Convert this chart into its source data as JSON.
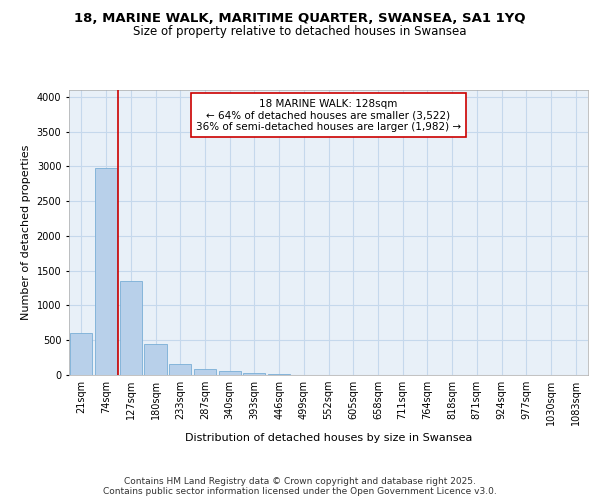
{
  "title_line1": "18, MARINE WALK, MARITIME QUARTER, SWANSEA, SA1 1YQ",
  "title_line2": "Size of property relative to detached houses in Swansea",
  "xlabel": "Distribution of detached houses by size in Swansea",
  "ylabel": "Number of detached properties",
  "categories": [
    "21sqm",
    "74sqm",
    "127sqm",
    "180sqm",
    "233sqm",
    "287sqm",
    "340sqm",
    "393sqm",
    "446sqm",
    "499sqm",
    "552sqm",
    "605sqm",
    "658sqm",
    "711sqm",
    "764sqm",
    "818sqm",
    "871sqm",
    "924sqm",
    "977sqm",
    "1030sqm",
    "1083sqm"
  ],
  "values": [
    600,
    2975,
    1355,
    450,
    165,
    90,
    55,
    25,
    10,
    5,
    3,
    2,
    1,
    1,
    1,
    1,
    0,
    0,
    0,
    0,
    0
  ],
  "bar_color": "#b8d0ea",
  "bar_edge_color": "#7aaed6",
  "grid_color": "#c5d8ec",
  "background_color": "#e8f0f8",
  "red_line_x": 1.5,
  "red_line_color": "#cc0000",
  "annotation_text": "18 MARINE WALK: 128sqm\n← 64% of detached houses are smaller (3,522)\n36% of semi-detached houses are larger (1,982) →",
  "annotation_box_color": "#ffffff",
  "annotation_box_edge": "#cc0000",
  "ylim": [
    0,
    4100
  ],
  "yticks": [
    0,
    500,
    1000,
    1500,
    2000,
    2500,
    3000,
    3500,
    4000
  ],
  "footer_line1": "Contains HM Land Registry data © Crown copyright and database right 2025.",
  "footer_line2": "Contains public sector information licensed under the Open Government Licence v3.0.",
  "title_fontsize": 9.5,
  "subtitle_fontsize": 8.5,
  "axis_label_fontsize": 8,
  "tick_fontsize": 7,
  "annotation_fontsize": 7.5,
  "footer_fontsize": 6.5
}
